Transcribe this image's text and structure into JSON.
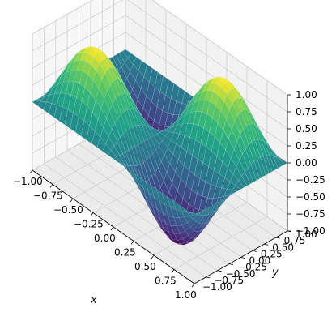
{
  "chart_data": {
    "type": "surface",
    "title": "",
    "xlabel": "x",
    "ylabel": "y",
    "zlabel": "",
    "xlim": [
      -1.0,
      1.0
    ],
    "ylim": [
      -1.0,
      1.0
    ],
    "zlim": [
      -1.0,
      1.0
    ],
    "x_ticks": [
      "−1.00",
      "−0.75",
      "−0.50",
      "−0.25",
      "0.00",
      "0.25",
      "0.50",
      "0.75",
      "1.00"
    ],
    "y_ticks": [
      "−1.00",
      "−0.75",
      "−0.50",
      "−0.25",
      "0.00",
      "0.25",
      "0.50",
      "0.75",
      "1.00"
    ],
    "z_ticks": [
      "−1.00",
      "−0.75",
      "−0.50",
      "−0.25",
      "0.00",
      "0.25",
      "0.50",
      "0.75",
      "1.00"
    ],
    "grid": true,
    "colormap": "viridis",
    "surface": {
      "peaks": [
        {
          "x": 0.5,
          "y": 0.5,
          "z": 1.0
        },
        {
          "x": -0.5,
          "y": -0.5,
          "z": 1.0
        }
      ],
      "troughs": [
        {
          "x": 0.5,
          "y": -0.5,
          "z": -1.0
        },
        {
          "x": -0.5,
          "y": 0.5,
          "z": -1.0
        }
      ],
      "edge_value": 0.0
    }
  }
}
